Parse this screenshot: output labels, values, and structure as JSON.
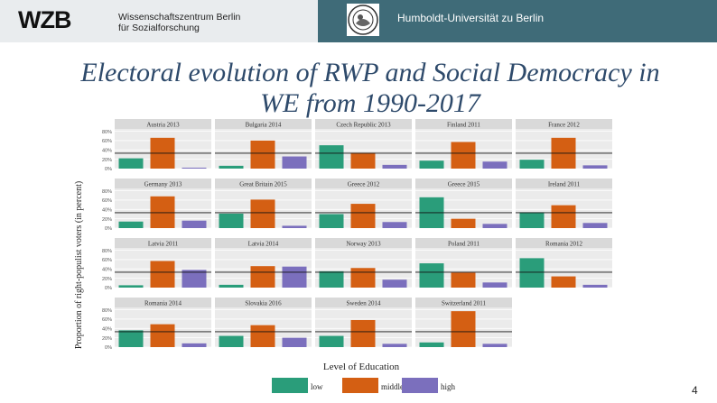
{
  "header": {
    "logo_text": "WZB",
    "institute_name_line1": "Wissenschaftszentrum Berlin",
    "institute_name_line2": "für Sozialforschung",
    "university_name": "Humboldt-Universität zu Berlin"
  },
  "slide": {
    "title_line1": "Electoral evolution of RWP and Social Democracy in",
    "title_line2": "WE from 1990-2017",
    "number": "4"
  },
  "chart_data": {
    "type": "bar",
    "ylabel": "Proportion of right-populist voters (in percent)",
    "xlabel": "Level of Education",
    "y_ticks": [
      "80%",
      "60%",
      "40%",
      "20%",
      "0%"
    ],
    "ylim": [
      0,
      85
    ],
    "legend": {
      "placement": "bottom",
      "entries": [
        "low",
        "middle",
        "high"
      ]
    },
    "colors": {
      "low": "#2a9d7a",
      "middle": "#d45f13",
      "high": "#7b6fbd",
      "panel_bg": "#ebebeb",
      "strip_bg": "#d9d9d9"
    },
    "grid": true,
    "panels": [
      {
        "title": "Austria 2013",
        "values": [
          22,
          66,
          2
        ],
        "reference": 33
      },
      {
        "title": "Bulgaria 2014",
        "values": [
          6,
          60,
          26
        ],
        "reference": 33
      },
      {
        "title": "Czech Republic 2013",
        "values": [
          50,
          34,
          8
        ],
        "reference": 33
      },
      {
        "title": "Finland 2011",
        "values": [
          17,
          57,
          15
        ],
        "reference": 33
      },
      {
        "title": "France 2012",
        "values": [
          19,
          66,
          7
        ],
        "reference": 33
      },
      {
        "title": "Germany 2013",
        "values": [
          14,
          68,
          16
        ],
        "reference": 33
      },
      {
        "title": "Great Britain 2015",
        "values": [
          31,
          61,
          5
        ],
        "reference": 33
      },
      {
        "title": "Greece 2012",
        "values": [
          30,
          52,
          13
        ],
        "reference": 33
      },
      {
        "title": "Greece 2015",
        "values": [
          66,
          20,
          9
        ],
        "reference": 33
      },
      {
        "title": "Ireland 2011",
        "values": [
          34,
          49,
          11
        ],
        "reference": 33
      },
      {
        "title": "Latvia 2011",
        "values": [
          5,
          57,
          38
        ],
        "reference": 33
      },
      {
        "title": "Latvia 2014",
        "values": [
          6,
          46,
          45
        ],
        "reference": 33
      },
      {
        "title": "Norway 2013",
        "values": [
          35,
          42,
          17
        ],
        "reference": 33
      },
      {
        "title": "Poland 2011",
        "values": [
          52,
          32,
          11
        ],
        "reference": 33
      },
      {
        "title": "Romania 2012",
        "values": [
          63,
          24,
          6
        ],
        "reference": 33
      },
      {
        "title": "Romania 2014",
        "values": [
          36,
          49,
          8
        ],
        "reference": 33
      },
      {
        "title": "Slovakia 2016",
        "values": [
          24,
          47,
          20
        ],
        "reference": 33
      },
      {
        "title": "Sweden 2014",
        "values": [
          24,
          58,
          7
        ],
        "reference": 33
      },
      {
        "title": "Switzerland 2011",
        "values": [
          10,
          77,
          7
        ],
        "reference": 33
      }
    ]
  }
}
